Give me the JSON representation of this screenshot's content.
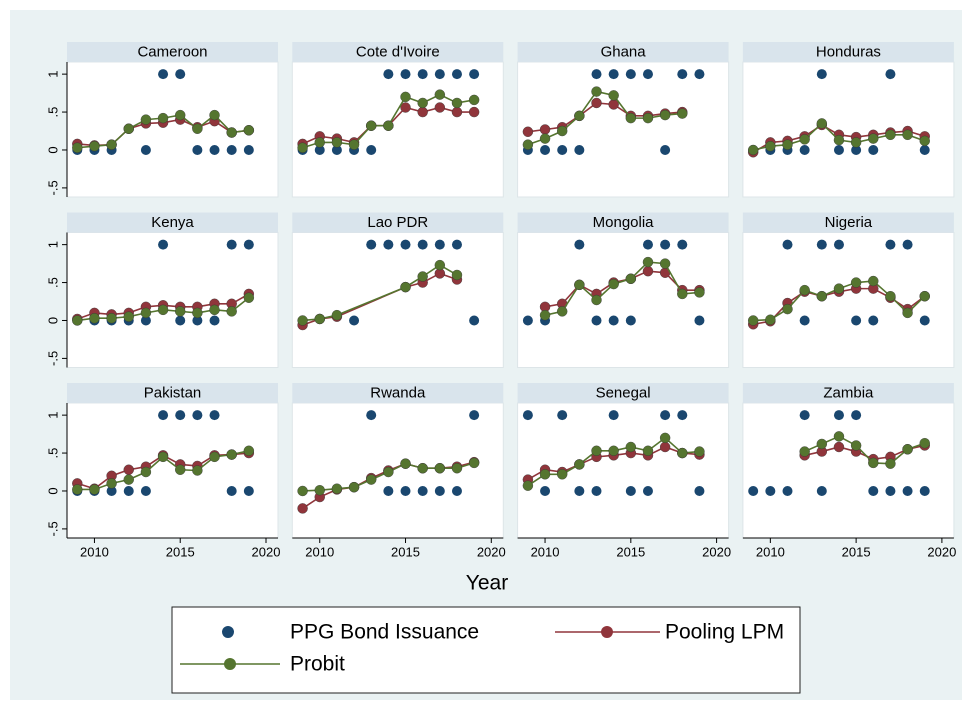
{
  "chart_data": [
    {
      "type": "line",
      "title": "Cameroon",
      "x": [
        2009,
        2010,
        2011,
        2012,
        2013,
        2014,
        2015,
        2016,
        2017,
        2018,
        2019
      ],
      "xlim": [
        2008.4,
        2020.7
      ],
      "ylim": [
        -0.62,
        1.16
      ],
      "yticks": [
        {
          "value": -0.5,
          "label": "-.5"
        },
        0,
        {
          "value": 0.5,
          "label": ".5"
        },
        1
      ],
      "series": [
        {
          "name": "PPG Bond Issuance",
          "type": "scatter",
          "color": "#1a476f",
          "values": [
            0,
            0,
            0,
            null,
            0,
            1,
            1,
            0,
            0,
            0,
            0
          ]
        },
        {
          "name": "Pooling LPM",
          "type": "line",
          "color": "#90353b",
          "values": [
            0.08,
            0.06,
            0.07,
            0.28,
            0.35,
            0.36,
            0.4,
            0.3,
            0.38,
            0.23,
            0.26
          ]
        },
        {
          "name": "Probit",
          "type": "line",
          "color": "#55752f",
          "values": [
            0.03,
            0.05,
            0.07,
            0.28,
            0.4,
            0.42,
            0.46,
            0.28,
            0.46,
            0.23,
            0.26
          ]
        }
      ]
    },
    {
      "type": "line",
      "title": "Cote d'Ivoire",
      "x": [
        2009,
        2010,
        2011,
        2012,
        2013,
        2014,
        2015,
        2016,
        2017,
        2018,
        2019
      ],
      "xlim": [
        2008.4,
        2020.7
      ],
      "ylim": [
        -0.62,
        1.16
      ],
      "series": [
        {
          "type": "scatter",
          "color": "#1a476f",
          "values": [
            0,
            0,
            0,
            0,
            0,
            1,
            1,
            1,
            1,
            1,
            1
          ]
        },
        {
          "type": "line",
          "color": "#90353b",
          "values": [
            0.08,
            0.18,
            0.15,
            0.1,
            0.32,
            0.32,
            0.56,
            0.5,
            0.56,
            0.5,
            0.5
          ]
        },
        {
          "type": "line",
          "color": "#55752f",
          "values": [
            0.03,
            0.1,
            0.1,
            0.07,
            0.32,
            0.32,
            0.7,
            0.62,
            0.73,
            0.62,
            0.66
          ]
        }
      ]
    },
    {
      "type": "line",
      "title": "Ghana",
      "x": [
        2009,
        2010,
        2011,
        2012,
        2013,
        2014,
        2015,
        2016,
        2017,
        2018,
        2019
      ],
      "xlim": [
        2008.4,
        2020.7
      ],
      "ylim": [
        -0.62,
        1.16
      ],
      "series": [
        {
          "type": "scatter",
          "color": "#1a476f",
          "values": [
            0,
            0,
            0,
            0,
            1,
            1,
            1,
            1,
            0,
            1,
            1
          ]
        },
        {
          "type": "line",
          "color": "#90353b",
          "values": [
            0.24,
            0.27,
            0.3,
            0.45,
            0.62,
            0.6,
            0.45,
            0.45,
            0.48,
            0.5,
            null
          ]
        },
        {
          "type": "line",
          "color": "#55752f",
          "values": [
            0.07,
            0.15,
            0.25,
            0.45,
            0.77,
            0.72,
            0.42,
            0.42,
            0.46,
            0.48,
            null
          ]
        }
      ]
    },
    {
      "type": "line",
      "title": "Honduras",
      "x": [
        2009,
        2010,
        2011,
        2012,
        2013,
        2014,
        2015,
        2016,
        2017,
        2018,
        2019
      ],
      "xlim": [
        2008.4,
        2020.7
      ],
      "ylim": [
        -0.62,
        1.16
      ],
      "series": [
        {
          "type": "scatter",
          "color": "#1a476f",
          "values": [
            0,
            0,
            0,
            0,
            1,
            0,
            0,
            0,
            1,
            null,
            0
          ]
        },
        {
          "type": "line",
          "color": "#90353b",
          "values": [
            -0.03,
            0.1,
            0.12,
            0.18,
            0.33,
            0.2,
            0.17,
            0.2,
            0.23,
            0.25,
            0.18
          ]
        },
        {
          "type": "line",
          "color": "#55752f",
          "values": [
            0,
            0.05,
            0.07,
            0.14,
            0.35,
            0.13,
            0.1,
            0.15,
            0.2,
            0.2,
            0.12
          ]
        }
      ]
    },
    {
      "type": "line",
      "title": "Kenya",
      "x": [
        2009,
        2010,
        2011,
        2012,
        2013,
        2014,
        2015,
        2016,
        2017,
        2018,
        2019
      ],
      "xlim": [
        2008.4,
        2020.7
      ],
      "ylim": [
        -0.62,
        1.16
      ],
      "yticks": [
        {
          "value": -0.5,
          "label": "-.5"
        },
        0,
        {
          "value": 0.5,
          "label": ".5"
        },
        1
      ],
      "series": [
        {
          "type": "scatter",
          "color": "#1a476f",
          "values": [
            0,
            0,
            0,
            0,
            0,
            1,
            0,
            0,
            0,
            1,
            1
          ]
        },
        {
          "type": "line",
          "color": "#90353b",
          "values": [
            0.02,
            0.1,
            0.08,
            0.1,
            0.18,
            0.2,
            0.18,
            0.18,
            0.22,
            0.22,
            0.35
          ]
        },
        {
          "type": "line",
          "color": "#55752f",
          "values": [
            0,
            0.03,
            0.03,
            0.05,
            0.1,
            0.14,
            0.12,
            0.1,
            0.14,
            0.12,
            0.3
          ]
        }
      ]
    },
    {
      "type": "line",
      "title": "Lao PDR",
      "x": [
        2009,
        2010,
        2011,
        2012,
        2013,
        2014,
        2015,
        2016,
        2017,
        2018,
        2019
      ],
      "xlim": [
        2008.4,
        2020.7
      ],
      "ylim": [
        -0.62,
        1.16
      ],
      "series": [
        {
          "type": "scatter",
          "color": "#1a476f",
          "values": [
            null,
            null,
            null,
            0,
            1,
            1,
            1,
            1,
            1,
            1,
            0
          ]
        },
        {
          "type": "line",
          "color": "#90353b",
          "x": [
            2009,
            2010,
            2011,
            2015,
            2016,
            2017,
            2018
          ],
          "values": [
            -0.06,
            0.02,
            0.05,
            0.44,
            0.5,
            0.62,
            0.54
          ]
        },
        {
          "type": "line",
          "color": "#55752f",
          "x": [
            2009,
            2010,
            2011,
            2015,
            2016,
            2017,
            2018
          ],
          "values": [
            0,
            0.02,
            0.07,
            0.44,
            0.58,
            0.73,
            0.6
          ]
        }
      ]
    },
    {
      "type": "line",
      "title": "Mongolia",
      "x": [
        2009,
        2010,
        2011,
        2012,
        2013,
        2014,
        2015,
        2016,
        2017,
        2018,
        2019
      ],
      "xlim": [
        2008.4,
        2020.7
      ],
      "ylim": [
        -0.62,
        1.16
      ],
      "series": [
        {
          "type": "scatter",
          "color": "#1a476f",
          "values": [
            0,
            0,
            null,
            1,
            0,
            0,
            0,
            1,
            1,
            1,
            0
          ]
        },
        {
          "type": "line",
          "color": "#90353b",
          "values": [
            null,
            0.18,
            0.22,
            0.47,
            0.35,
            0.5,
            0.55,
            0.65,
            0.63,
            0.4,
            0.4
          ]
        },
        {
          "type": "line",
          "color": "#55752f",
          "values": [
            null,
            0.07,
            0.12,
            0.47,
            0.27,
            0.48,
            0.55,
            0.77,
            0.75,
            0.35,
            0.37
          ]
        }
      ]
    },
    {
      "type": "line",
      "title": "Nigeria",
      "x": [
        2009,
        2010,
        2011,
        2012,
        2013,
        2014,
        2015,
        2016,
        2017,
        2018,
        2019
      ],
      "xlim": [
        2008.4,
        2020.7
      ],
      "ylim": [
        -0.62,
        1.16
      ],
      "series": [
        {
          "type": "scatter",
          "color": "#1a476f",
          "values": [
            null,
            null,
            1,
            0,
            1,
            1,
            0,
            0,
            1,
            1,
            0
          ]
        },
        {
          "type": "line",
          "color": "#90353b",
          "values": [
            -0.05,
            -0.01,
            0.23,
            0.38,
            0.32,
            0.38,
            0.42,
            0.42,
            0.3,
            0.15,
            0.32
          ]
        },
        {
          "type": "line",
          "color": "#55752f",
          "values": [
            0,
            0.01,
            0.15,
            0.4,
            0.32,
            0.42,
            0.5,
            0.52,
            0.32,
            0.1,
            0.32
          ]
        }
      ]
    },
    {
      "type": "line",
      "title": "Pakistan",
      "x": [
        2009,
        2010,
        2011,
        2012,
        2013,
        2014,
        2015,
        2016,
        2017,
        2018,
        2019
      ],
      "xlim": [
        2008.4,
        2020.7
      ],
      "ylim": [
        -0.62,
        1.16
      ],
      "xticks": [
        2010,
        2015,
        2020
      ],
      "yticks": [
        {
          "value": -0.5,
          "label": "-.5"
        },
        0,
        {
          "value": 0.5,
          "label": ".5"
        },
        1
      ],
      "series": [
        {
          "type": "scatter",
          "color": "#1a476f",
          "values": [
            0,
            0,
            0,
            0,
            0,
            1,
            1,
            1,
            1,
            0,
            0
          ]
        },
        {
          "type": "line",
          "color": "#90353b",
          "values": [
            0.1,
            0.03,
            0.2,
            0.28,
            0.32,
            0.47,
            0.35,
            0.33,
            0.47,
            0.48,
            0.5
          ]
        },
        {
          "type": "line",
          "color": "#55752f",
          "values": [
            0.02,
            0.02,
            0.1,
            0.15,
            0.25,
            0.45,
            0.28,
            0.27,
            0.45,
            0.48,
            0.53
          ]
        }
      ]
    },
    {
      "type": "line",
      "title": "Rwanda",
      "x": [
        2009,
        2010,
        2011,
        2012,
        2013,
        2014,
        2015,
        2016,
        2017,
        2018,
        2019
      ],
      "xlim": [
        2008.4,
        2020.7
      ],
      "ylim": [
        -0.62,
        1.16
      ],
      "xticks": [
        2010,
        2015,
        2020
      ],
      "series": [
        {
          "type": "scatter",
          "color": "#1a476f",
          "values": [
            null,
            null,
            null,
            null,
            1,
            0,
            0,
            0,
            0,
            0,
            1
          ]
        },
        {
          "type": "line",
          "color": "#90353b",
          "values": [
            -0.23,
            -0.08,
            0.02,
            0.05,
            0.17,
            0.27,
            0.36,
            0.3,
            0.3,
            0.32,
            0.38
          ]
        },
        {
          "type": "line",
          "color": "#55752f",
          "values": [
            0,
            0.01,
            0.03,
            0.05,
            0.15,
            0.25,
            0.36,
            0.3,
            0.3,
            0.3,
            0.37
          ]
        }
      ]
    },
    {
      "type": "line",
      "title": "Senegal",
      "x": [
        2009,
        2010,
        2011,
        2012,
        2013,
        2014,
        2015,
        2016,
        2017,
        2018,
        2019
      ],
      "xlim": [
        2008.4,
        2020.7
      ],
      "ylim": [
        -0.62,
        1.16
      ],
      "xticks": [
        2010,
        2015,
        2020
      ],
      "series": [
        {
          "type": "scatter",
          "color": "#1a476f",
          "values": [
            1,
            0,
            1,
            0,
            0,
            1,
            0,
            0,
            1,
            1,
            0
          ]
        },
        {
          "type": "line",
          "color": "#90353b",
          "values": [
            0.15,
            0.28,
            0.25,
            0.35,
            0.45,
            0.47,
            0.5,
            0.47,
            0.58,
            0.5,
            0.48
          ]
        },
        {
          "type": "line",
          "color": "#55752f",
          "values": [
            0.07,
            0.22,
            0.22,
            0.35,
            0.53,
            0.53,
            0.58,
            0.53,
            0.7,
            0.5,
            0.52
          ]
        }
      ]
    },
    {
      "type": "line",
      "title": "Zambia",
      "x": [
        2009,
        2010,
        2011,
        2012,
        2013,
        2014,
        2015,
        2016,
        2017,
        2018,
        2019
      ],
      "xlim": [
        2008.4,
        2020.7
      ],
      "ylim": [
        -0.62,
        1.16
      ],
      "xticks": [
        2010,
        2015,
        2020
      ],
      "series": [
        {
          "type": "scatter",
          "color": "#1a476f",
          "values": [
            0,
            0,
            0,
            1,
            0,
            1,
            1,
            0,
            0,
            0,
            0
          ]
        },
        {
          "type": "line",
          "color": "#90353b",
          "values": [
            null,
            null,
            null,
            0.47,
            0.52,
            0.58,
            0.52,
            0.42,
            0.45,
            0.55,
            0.6
          ]
        },
        {
          "type": "line",
          "color": "#55752f",
          "values": [
            null,
            null,
            null,
            0.52,
            0.62,
            0.72,
            0.6,
            0.37,
            0.36,
            0.55,
            0.63
          ]
        }
      ]
    }
  ],
  "xlabel": "Year"
}
